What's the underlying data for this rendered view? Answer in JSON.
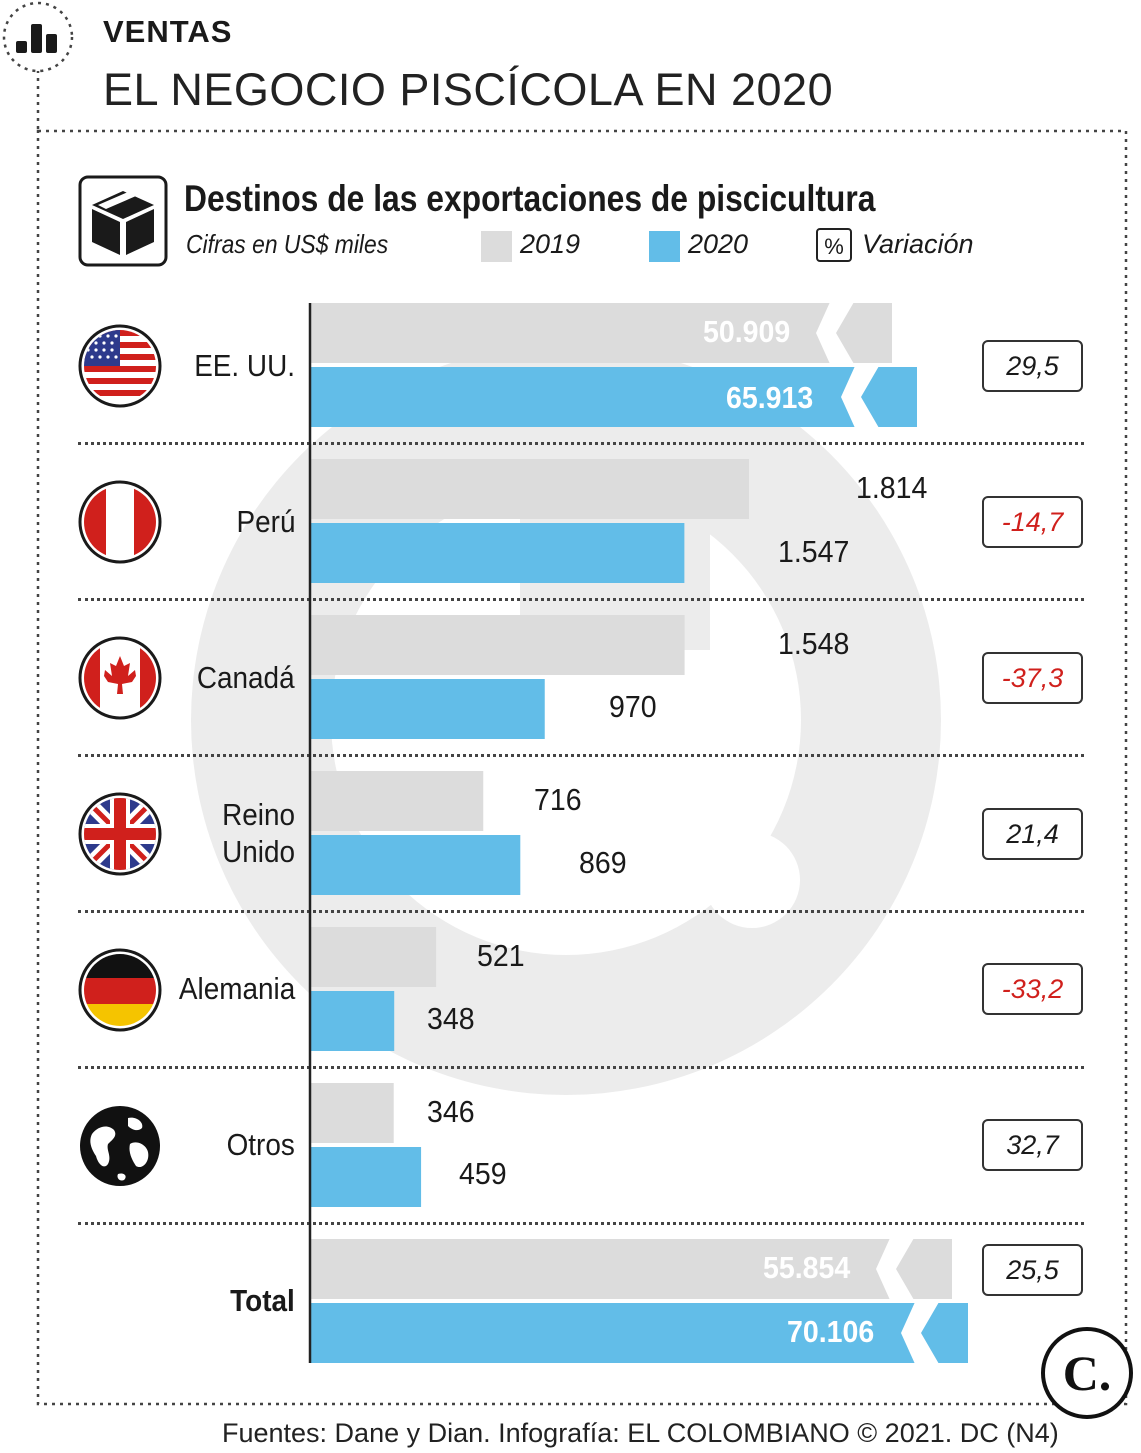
{
  "header": {
    "section": "VENTAS",
    "title": "EL NEGOCIO PISCÍCOLA EN 2020"
  },
  "subtitle": "Destinos de las exportaciones de piscicultura",
  "units": "Cifras en US$ miles",
  "legend": {
    "y2019": "2019",
    "y2020": "2020",
    "pct_symbol": "%",
    "variation": "Variación"
  },
  "colors": {
    "bar_2019": "#dcdcdc",
    "bar_2020": "#62bde8",
    "negative": "#d0201c",
    "axis": "#222222"
  },
  "chart_data": {
    "type": "bar",
    "orientation": "horizontal",
    "title": "Destinos de las exportaciones de piscicultura",
    "ylabel": "Cifras en US$ miles",
    "categories": [
      "EE. UU.",
      "Perú",
      "Canadá",
      "Reino Unido",
      "Alemania",
      "Otros",
      "Total"
    ],
    "series": [
      {
        "name": "2019",
        "values": [
          50909,
          1814,
          1548,
          716,
          521,
          346,
          55854
        ],
        "labels": [
          "50.909",
          "1.814",
          "1.548",
          "716",
          "521",
          "346",
          "55.854"
        ]
      },
      {
        "name": "2020",
        "values": [
          65913,
          1547,
          970,
          869,
          348,
          459,
          70106
        ],
        "labels": [
          "65.913",
          "1.547",
          "970",
          "869",
          "348",
          "459",
          "70.106"
        ]
      }
    ],
    "variation_pct": [
      "29,5",
      "-14,7",
      "-37,3",
      "21,4",
      "-33,2",
      "32,7",
      "25,5"
    ],
    "broken_axis_categories": [
      "EE. UU.",
      "Total"
    ]
  },
  "rows": [
    {
      "label_lines": [
        "EE. UU."
      ],
      "flag": "usa-flag-icon"
    },
    {
      "label_lines": [
        "Perú"
      ],
      "flag": "peru-flag-icon"
    },
    {
      "label_lines": [
        "Canadá"
      ],
      "flag": "canada-flag-icon"
    },
    {
      "label_lines": [
        "Reino",
        "Unido"
      ],
      "flag": "uk-flag-icon"
    },
    {
      "label_lines": [
        "Alemania"
      ],
      "flag": "germany-flag-icon"
    },
    {
      "label_lines": [
        "Otros"
      ],
      "flag": "globe-icon"
    },
    {
      "label_lines": [
        "Total"
      ],
      "flag": ""
    }
  ],
  "logo": {
    "letter": "C."
  },
  "footer": "Fuentes: Dane y Dian. Infografía: EL COLOMBIANO © 2021. DC (N4)"
}
